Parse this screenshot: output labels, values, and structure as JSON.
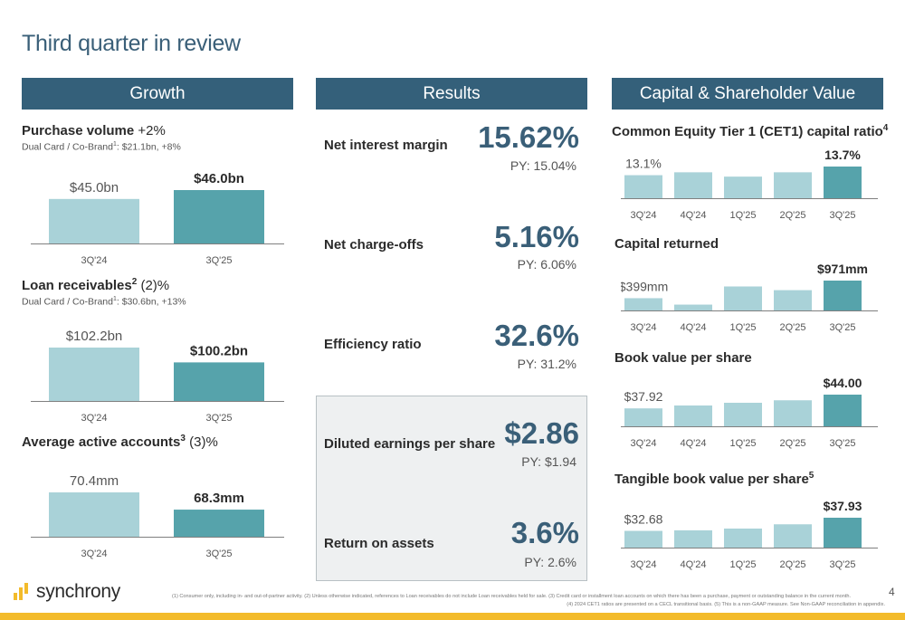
{
  "page": {
    "title": "Third quarter in review",
    "page_number": "4",
    "logo_text": "synchrony",
    "footnote_line1": "(1) Consumer only, including in- and out-of-partner activity. (2) Unless otherwise indicated, references to Loan receivables do not include Loan receivables held for sale. (3) Credit card or installment loan accounts on which there has been a purchase, payment or outstanding balance in the current month.",
    "footnote_line2": "(4) 2024 CET1 ratios are presented on a CECL transitional basis. (5) This is a non-GAAP measure. See Non-GAAP reconciliation in appendix."
  },
  "colors": {
    "header_bg": "#34607a",
    "bar_light": "#a9d2d8",
    "bar_dark": "#56a3ab",
    "title": "#3a5f78",
    "accent_yellow": "#f3bb2b"
  },
  "growth": {
    "header": "Growth",
    "purchase": {
      "title": "Purchase volume",
      "change": "+2%",
      "sub_a": "Dual Card / Co-Brand",
      "sup": "1",
      "sub_b": ": $21.1bn, +8%"
    },
    "loans": {
      "title": "Loan receivables",
      "sup": "2",
      "change": "(2)%",
      "sub_a": "Dual Card / Co-Brand",
      "sub_sup": "1",
      "sub_b": ": $30.6bn, +13%"
    },
    "accounts": {
      "title": "Average active accounts",
      "sup": "3",
      "change": "(3)%"
    }
  },
  "results": {
    "header": "Results",
    "items": [
      {
        "label": "Net interest margin",
        "value": "15.62%",
        "py": "PY: 15.04%"
      },
      {
        "label": "Net charge-offs",
        "value": "5.16%",
        "py": "PY: 6.06%"
      },
      {
        "label": "Efficiency ratio",
        "value": "32.6%",
        "py": "PY: 31.2%"
      },
      {
        "label": "Diluted earnings per share",
        "value": "$2.86",
        "py": "PY: $1.94"
      },
      {
        "label": "Return on assets",
        "value": "3.6%",
        "py": "PY: 2.6%"
      }
    ]
  },
  "capital": {
    "header": "Capital & Shareholder Value",
    "cet1_title": "Common Equity Tier 1 (CET1) capital ratio",
    "cet1_sup": "4",
    "returned_title": "Capital returned",
    "bvps_title": "Book value per share",
    "tbvps_title": "Tangible book value per share",
    "tbvps_sup": "5"
  },
  "chart_data": [
    {
      "id": "purchase",
      "type": "bar",
      "categories": [
        "3Q'24",
        "3Q'25"
      ],
      "values": [
        45.0,
        46.0
      ],
      "labels": [
        "$45.0bn",
        "$46.0bn"
      ]
    },
    {
      "id": "loans",
      "type": "bar",
      "categories": [
        "3Q'24",
        "3Q'25"
      ],
      "values": [
        102.2,
        100.2
      ],
      "labels": [
        "$102.2bn",
        "$100.2bn"
      ]
    },
    {
      "id": "accounts",
      "type": "bar",
      "categories": [
        "3Q'24",
        "3Q'25"
      ],
      "values": [
        70.4,
        68.3
      ],
      "labels": [
        "70.4mm",
        "68.3mm"
      ]
    },
    {
      "id": "cet1",
      "type": "bar",
      "categories": [
        "3Q'24",
        "4Q'24",
        "1Q'25",
        "2Q'25",
        "3Q'25"
      ],
      "values": [
        13.1,
        13.3,
        13.0,
        13.3,
        13.7
      ],
      "labels": [
        "13.1%",
        "",
        "",
        "",
        "13.7%"
      ]
    },
    {
      "id": "returned",
      "type": "bar",
      "categories": [
        "3Q'24",
        "4Q'24",
        "1Q'25",
        "2Q'25",
        "3Q'25"
      ],
      "values": [
        399,
        190,
        780,
        660,
        971
      ],
      "labels": [
        "$399mm",
        "",
        "",
        "",
        "$971mm"
      ]
    },
    {
      "id": "bvps",
      "type": "bar",
      "categories": [
        "3Q'24",
        "4Q'24",
        "1Q'25",
        "2Q'25",
        "3Q'25"
      ],
      "values": [
        37.92,
        39.2,
        40.4,
        41.5,
        44.0
      ],
      "labels": [
        "$37.92",
        "",
        "",
        "",
        "$44.00"
      ]
    },
    {
      "id": "tbvps",
      "type": "bar",
      "categories": [
        "3Q'24",
        "4Q'24",
        "1Q'25",
        "2Q'25",
        "3Q'25"
      ],
      "values": [
        32.68,
        32.9,
        33.6,
        35.3,
        37.93
      ],
      "labels": [
        "$32.68",
        "",
        "",
        "",
        "$37.93"
      ]
    }
  ]
}
